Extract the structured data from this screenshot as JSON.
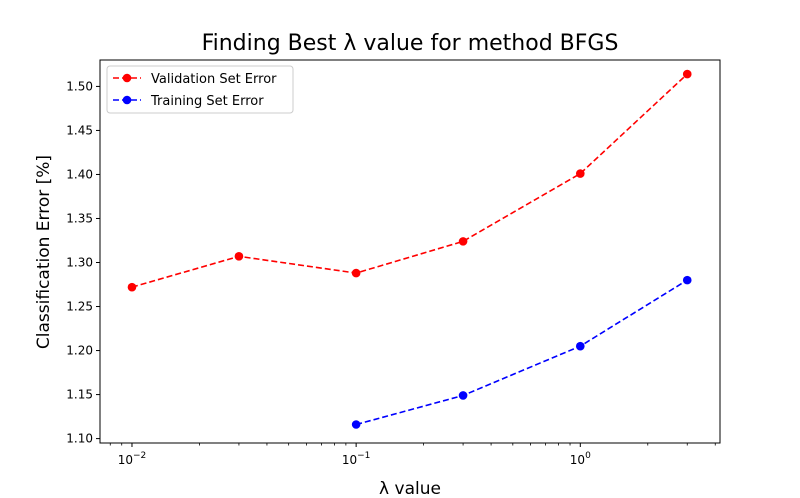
{
  "chart_data": {
    "type": "line",
    "title": "Finding Best λ value for method BFGS",
    "xlabel": "λ value",
    "ylabel": "Classification Error [%]",
    "xscale": "log",
    "xlim": [
      0.0072,
      4.2
    ],
    "ylim": [
      1.095,
      1.53
    ],
    "xticks": [
      {
        "value": 0.01,
        "base": "10",
        "exp": "−2"
      },
      {
        "value": 0.1,
        "base": "10",
        "exp": "−1"
      },
      {
        "value": 1,
        "base": "10",
        "exp": "0"
      }
    ],
    "yticks": [
      "1.10",
      "1.15",
      "1.20",
      "1.25",
      "1.30",
      "1.35",
      "1.40",
      "1.45",
      "1.50"
    ],
    "grid": false,
    "legend_position": "top-left",
    "series": [
      {
        "name": "Validation Set Error",
        "color": "#ff0000",
        "line_style": "dashed",
        "marker": "circle",
        "x": [
          0.01,
          0.03,
          0.1,
          0.3,
          1,
          3
        ],
        "y": [
          1.272,
          1.307,
          1.288,
          1.324,
          1.401,
          1.514
        ]
      },
      {
        "name": "Training Set Error",
        "color": "#0000ff",
        "line_style": "dashed",
        "marker": "circle",
        "x": [
          0.1,
          0.3,
          1,
          3
        ],
        "y": [
          1.116,
          1.149,
          1.205,
          1.28
        ]
      }
    ]
  }
}
